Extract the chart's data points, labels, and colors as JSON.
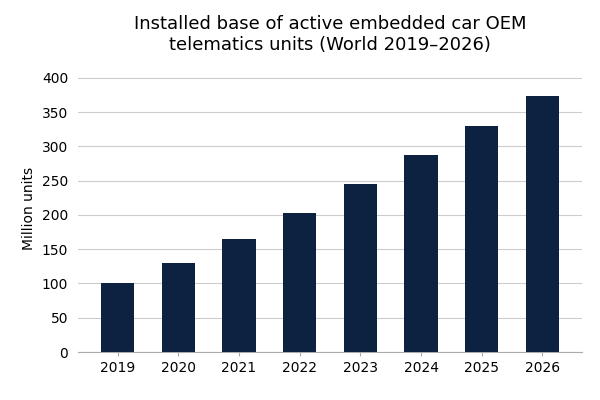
{
  "years": [
    2019,
    2020,
    2021,
    2022,
    2023,
    2024,
    2025,
    2026
  ],
  "values": [
    101,
    130,
    165,
    202,
    245,
    287,
    330,
    373
  ],
  "bar_color": "#0d2240",
  "title_line1": "Installed base of active embedded car OEM",
  "title_line2": "telematics units (World 2019–2026)",
  "ylabel": "Million units",
  "ylim": [
    0,
    420
  ],
  "yticks": [
    0,
    50,
    100,
    150,
    200,
    250,
    300,
    350,
    400
  ],
  "background_color": "#ffffff",
  "grid_color": "#cccccc",
  "title_fontsize": 13,
  "label_fontsize": 10,
  "tick_fontsize": 10
}
